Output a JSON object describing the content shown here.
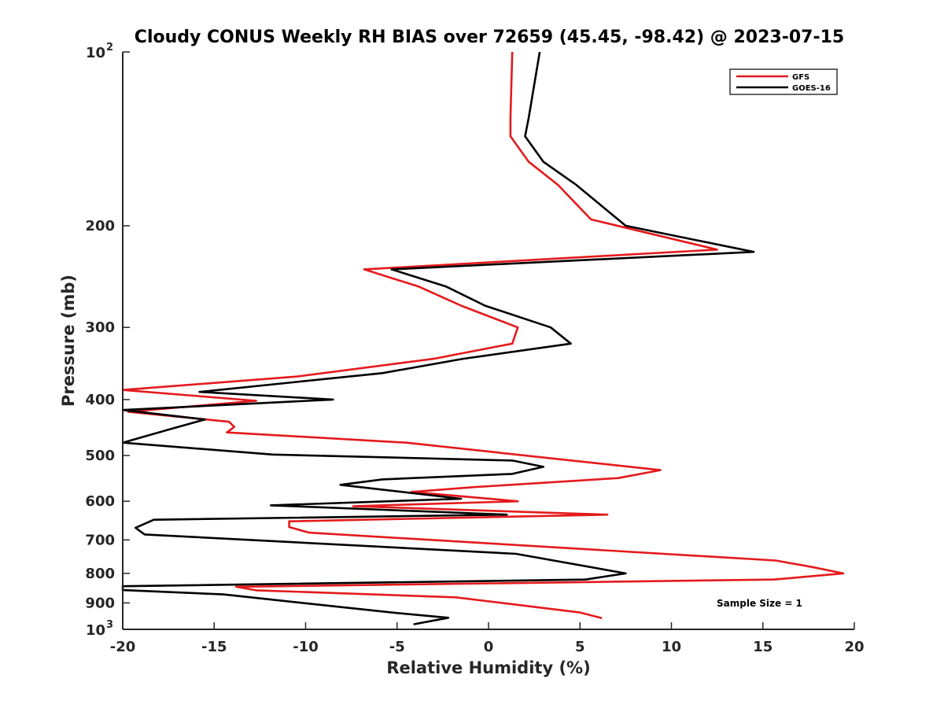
{
  "chart_data": {
    "type": "line",
    "title": "Cloudy CONUS Weekly RH BIAS over 72659 (45.45, -98.42) @ 2023-07-15",
    "xlabel": "Relative Humidity (%)",
    "ylabel": "Pressure (mb)",
    "xlim": [
      -20,
      20
    ],
    "ylim": [
      100,
      1000
    ],
    "y_scale": "log",
    "y_reversed": true,
    "x_ticks": [
      -20,
      -15,
      -10,
      -5,
      0,
      5,
      10,
      15,
      20
    ],
    "x_tick_labels": [
      "-20",
      "-15",
      "-10",
      "-5",
      "0",
      "5",
      "10",
      "15",
      "20"
    ],
    "y_ticks": [
      200,
      300,
      400,
      500,
      600,
      700,
      800,
      900
    ],
    "y_tick_labels": [
      "200",
      "300",
      "400",
      "500",
      "600",
      "700",
      "800",
      "900"
    ],
    "y_end_labels": [
      {
        "value": 100,
        "base": "10",
        "exponent": "2"
      },
      {
        "value": 1000,
        "base": "10",
        "exponent": "3"
      }
    ],
    "grid": false,
    "legend_position": "top-right",
    "annotation": "Sample Size = 1",
    "series": [
      {
        "name": "GFS",
        "color": "#e41a1c",
        "x": [
          1.3,
          1.2,
          1.2,
          2.2,
          3.8,
          5.6,
          12.5,
          -6.8,
          -3.8,
          -1.5,
          1.6,
          1.3,
          -3.0,
          -10.5,
          -20.0,
          -12.7,
          -19.7,
          -14.2,
          -13.9,
          -14.3,
          -4.5,
          9.4,
          7.1,
          -0.7,
          -4.2,
          1.6,
          -7.4,
          6.5,
          -10.9,
          -10.9,
          -9.8,
          15.7,
          17.7,
          19.4,
          15.6,
          -13.8,
          -12.7,
          -1.8,
          5.0,
          6.2
        ],
        "y": [
          100,
          130,
          140,
          155,
          170,
          195,
          220,
          238,
          255,
          275,
          300,
          320,
          340,
          365,
          385,
          402,
          420,
          437,
          446,
          456,
          475,
          530,
          547,
          567,
          578,
          600,
          612,
          633,
          650,
          665,
          680,
          760,
          780,
          800,
          820,
          844,
          856,
          880,
          935,
          956
        ]
      },
      {
        "name": "GOES-16",
        "color": "#000000",
        "x": [
          2.8,
          2.2,
          2.0,
          3.0,
          4.8,
          7.5,
          14.5,
          -5.3,
          -2.3,
          -0.2,
          3.4,
          4.5,
          -1.4,
          -5.8,
          -15.8,
          -8.5,
          -20.0,
          -15.5,
          -17.4,
          -20.0,
          -11.8,
          1.3,
          3.0,
          1.3,
          -5.8,
          -8.1,
          -1.5,
          -11.9,
          1.0,
          -18.3,
          -19.3,
          -18.8,
          1.5,
          7.5,
          5.3,
          -20.0,
          -20.0,
          -14.5,
          -5.3,
          -2.2,
          -4.1
        ],
        "y": [
          100,
          130,
          140,
          155,
          170,
          200,
          222,
          238,
          255,
          275,
          300,
          320,
          340,
          360,
          388,
          400,
          417,
          433,
          450,
          475,
          498,
          510,
          523,
          538,
          550,
          562,
          594,
          610,
          633,
          646,
          667,
          685,
          740,
          800,
          820,
          842,
          855,
          870,
          935,
          955,
          980
        ]
      }
    ]
  }
}
